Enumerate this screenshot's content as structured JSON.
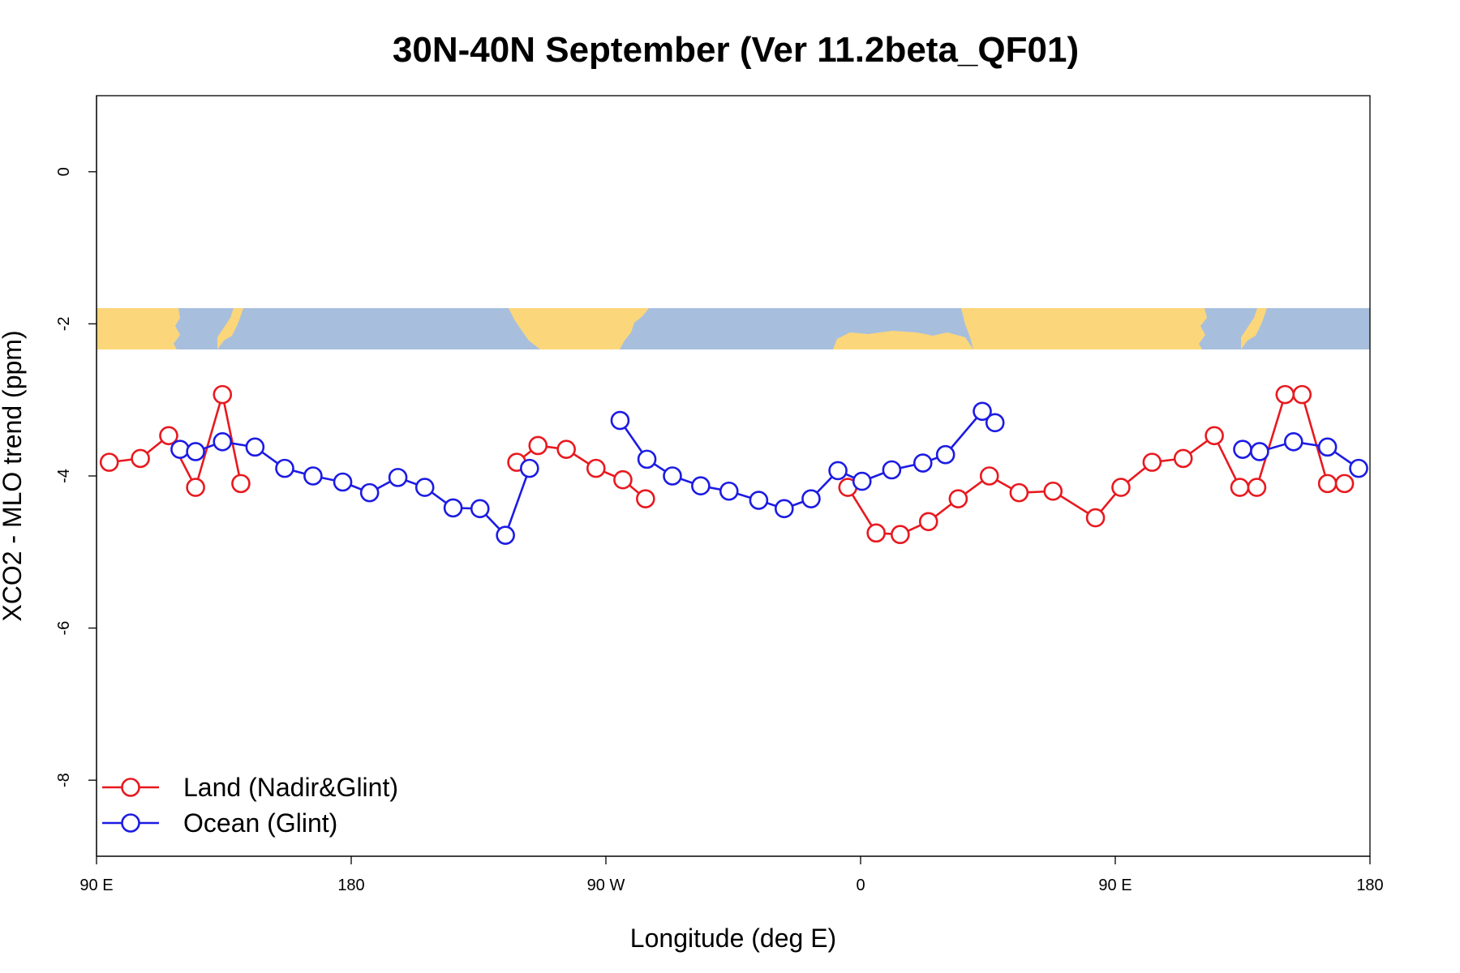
{
  "chart_data": {
    "type": "line",
    "title": "30N-40N September (Ver 11.2beta_QF01)",
    "xlabel": "Longitude (deg E)",
    "ylabel": "XCO2 - MLO trend (ppm)",
    "xlim": [
      90,
      540
    ],
    "ylim": [
      -9,
      1
    ],
    "x_ticks": [
      {
        "value": 90,
        "label": "90 E"
      },
      {
        "value": 180,
        "label": "180"
      },
      {
        "value": 270,
        "label": "90 W"
      },
      {
        "value": 360,
        "label": "0"
      },
      {
        "value": 450,
        "label": "90 E"
      },
      {
        "value": 540,
        "label": "180"
      }
    ],
    "y_ticks": [
      {
        "value": 0,
        "label": "0"
      },
      {
        "value": -2,
        "label": "-2"
      },
      {
        "value": -4,
        "label": "-4"
      },
      {
        "value": -6,
        "label": "-6"
      },
      {
        "value": -8,
        "label": "-8"
      }
    ],
    "grid": false,
    "legend_position": "bottom-left",
    "map_strip": {
      "y_range": [
        -2.35,
        -1.8
      ],
      "ocean_color": "#a7bfdd",
      "land_color": "#fcd67a"
    },
    "series": [
      {
        "name": "Land (Nadir&Glint)",
        "color": "#e8191f",
        "segments": [
          {
            "x": [
              94.5,
              105.5,
              115.5,
              125,
              134.5,
              141
            ],
            "y": [
              -3.82,
              -3.77,
              -3.47,
              -4.15,
              -2.93,
              -4.1
            ]
          },
          {
            "x": [
              238.5,
              246,
              256,
              266.5,
              276,
              284
            ],
            "y": [
              -3.82,
              -3.6,
              -3.65,
              -3.9,
              -4.05,
              -4.3
            ]
          },
          {
            "x": [
              355.5,
              365.5,
              374,
              384,
              394.5,
              405.5,
              416,
              428,
              443,
              452,
              463,
              474,
              485,
              494,
              500,
              510,
              516,
              525,
              531
            ],
            "y": [
              -4.15,
              -4.75,
              -4.77,
              -4.6,
              -4.3,
              -4.0,
              -4.22,
              -4.2,
              -4.55,
              -4.15,
              -3.82,
              -3.77,
              -3.47,
              -4.15,
              -4.15,
              -2.93,
              -2.93,
              -4.1,
              -4.1
            ]
          }
        ]
      },
      {
        "name": "Ocean (Glint)",
        "color": "#1c1be3",
        "segments": [
          {
            "x": [
              119.5,
              125,
              134.5,
              146,
              156.5,
              166.5,
              177,
              186.5,
              196.5,
              206,
              216,
              225.5,
              234.5,
              243
            ],
            "y": [
              -3.65,
              -3.68,
              -3.55,
              -3.62,
              -3.9,
              -4.0,
              -4.08,
              -4.22,
              -4.02,
              -4.15,
              -4.42,
              -4.43,
              -4.78,
              -3.9
            ]
          },
          {
            "x": [
              275,
              284.5,
              293.5,
              303.5,
              313.5,
              324,
              333,
              342.5,
              352,
              360.5,
              371,
              382,
              390,
              403,
              407.5
            ],
            "y": [
              -3.27,
              -3.78,
              -4.0,
              -4.13,
              -4.2,
              -4.32,
              -4.43,
              -4.3,
              -3.93,
              -4.07,
              -3.92,
              -3.83,
              -3.72,
              -3.15,
              -3.3
            ]
          },
          {
            "x": [
              495,
              501,
              513,
              525,
              536
            ],
            "y": [
              -3.65,
              -3.68,
              -3.55,
              -3.62,
              -3.9
            ]
          }
        ]
      }
    ]
  }
}
